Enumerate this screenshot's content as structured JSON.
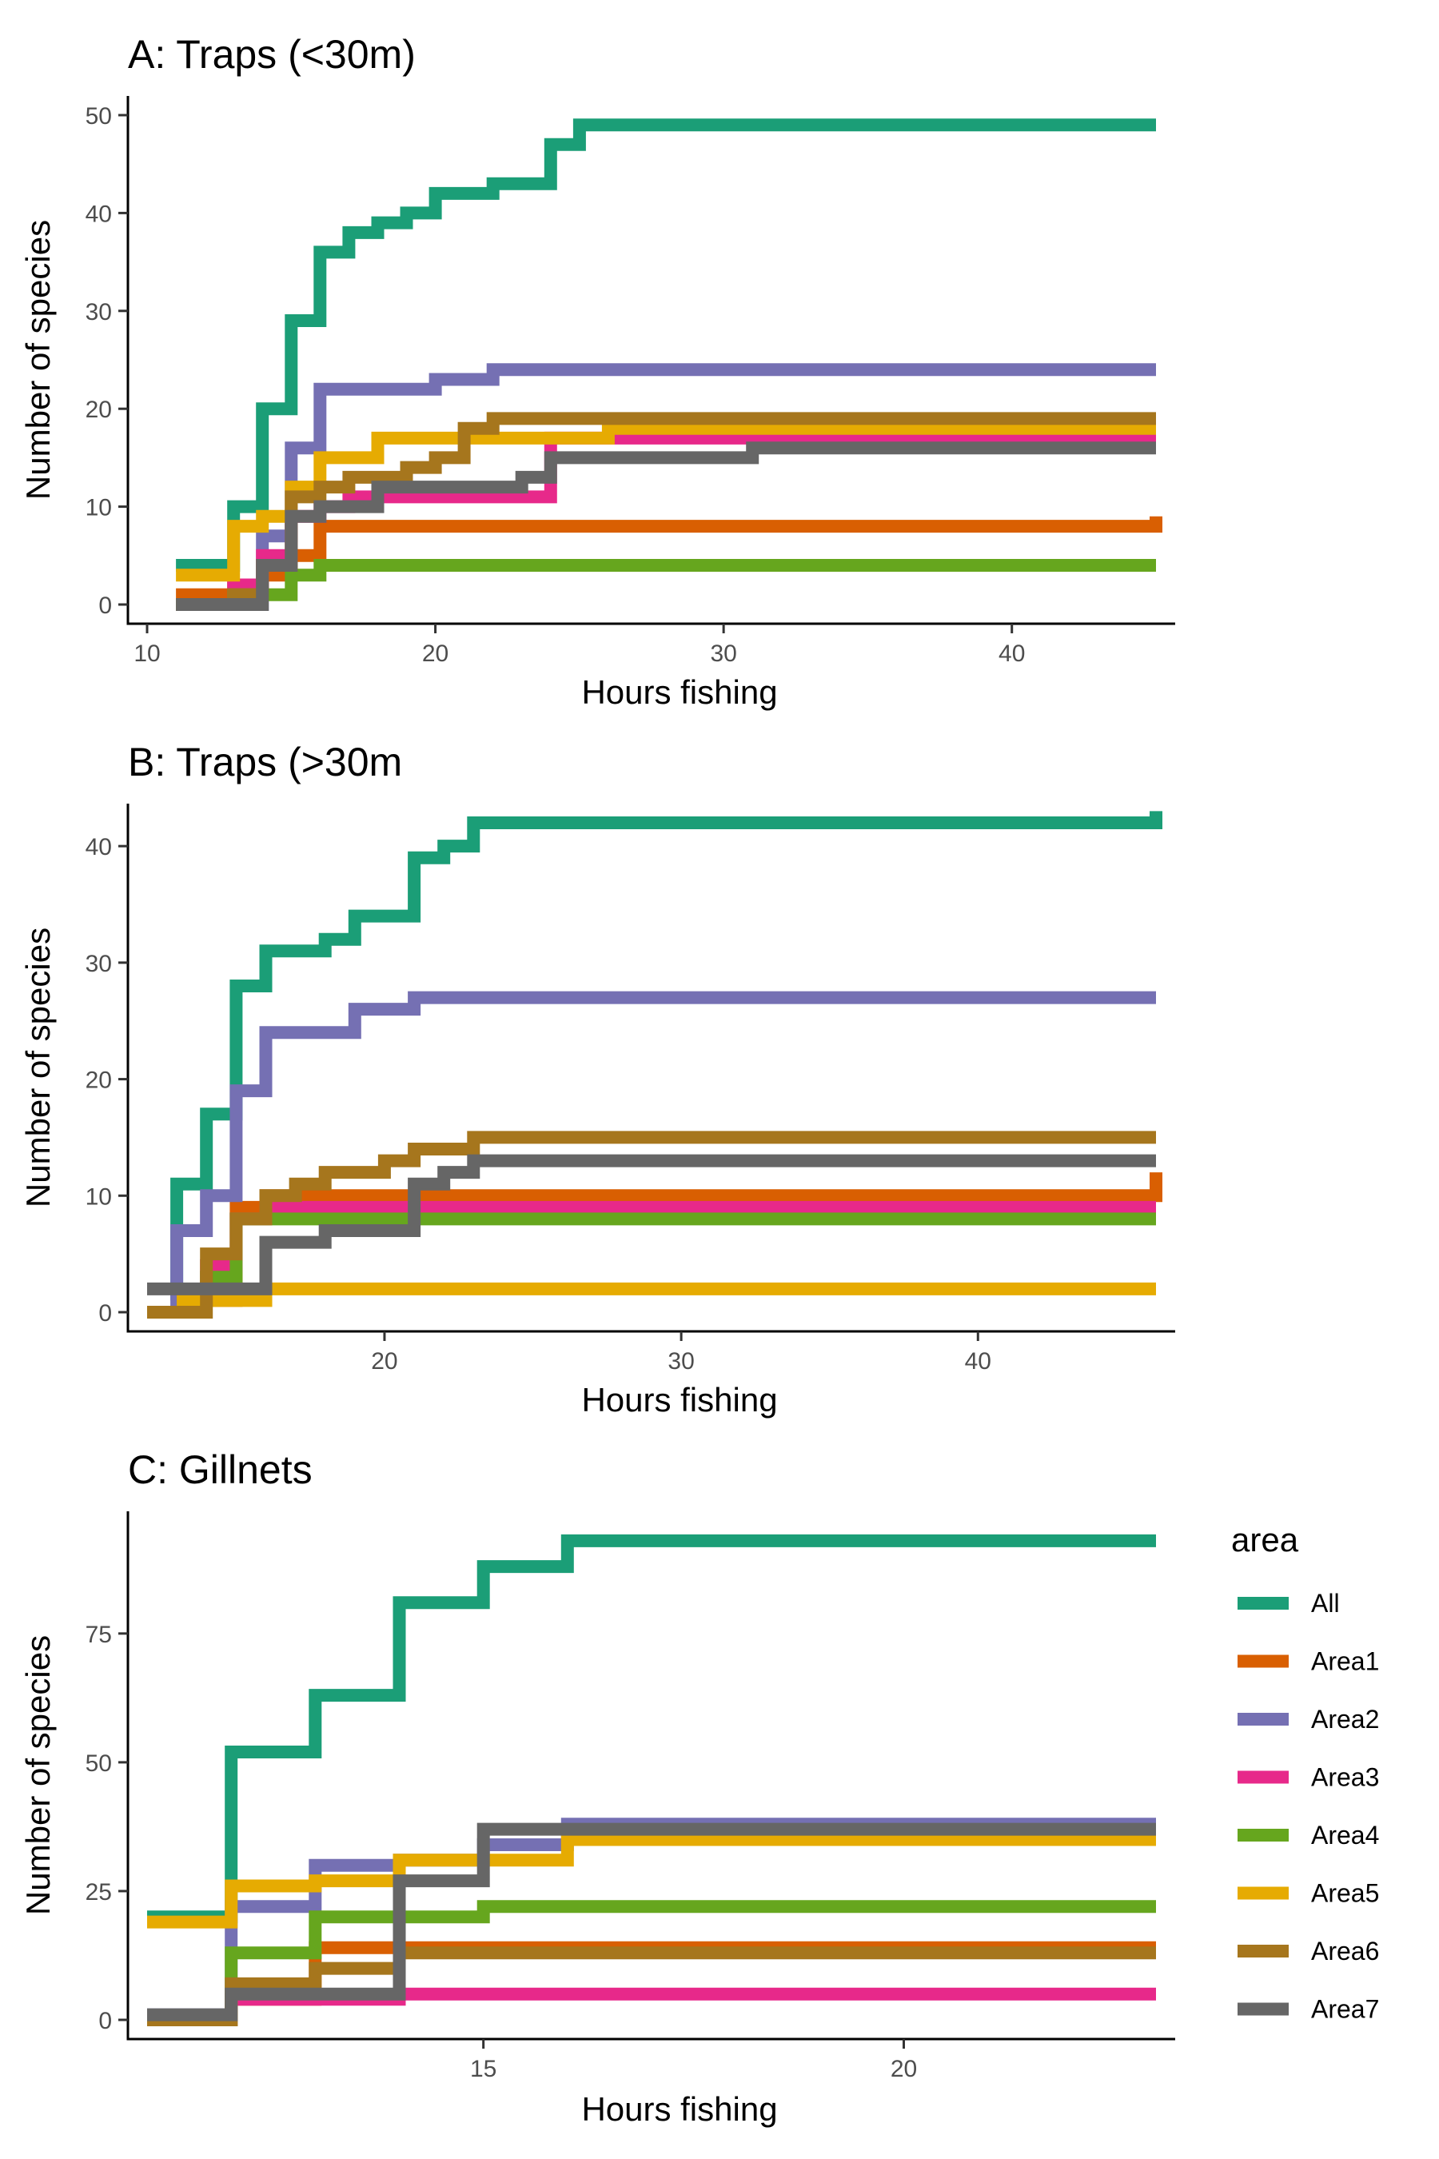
{
  "legend": {
    "title": "area",
    "entries": [
      {
        "name": "All",
        "color": "#1B9E77"
      },
      {
        "name": "Area1",
        "color": "#D95F02"
      },
      {
        "name": "Area2",
        "color": "#7570B3"
      },
      {
        "name": "Area3",
        "color": "#E7298A"
      },
      {
        "name": "Area4",
        "color": "#66A61E"
      },
      {
        "name": "Area5",
        "color": "#E6AB02"
      },
      {
        "name": "Area6",
        "color": "#A6761D"
      },
      {
        "name": "Area7",
        "color": "#666666"
      }
    ]
  },
  "chart_data": [
    {
      "type": "line",
      "step": true,
      "title": "A: Traps (<30m)",
      "xlabel": "Hours fishing",
      "ylabel": "Number of species",
      "xlim": [
        10,
        45
      ],
      "ylim": [
        0,
        50
      ],
      "xticks": [
        10,
        20,
        30,
        40
      ],
      "yticks": [
        0,
        10,
        20,
        30,
        40,
        50
      ],
      "grid": false,
      "series": [
        {
          "name": "All",
          "points": [
            [
              11,
              4
            ],
            [
              13,
              10
            ],
            [
              14,
              20
            ],
            [
              15,
              29
            ],
            [
              16,
              36
            ],
            [
              17,
              38
            ],
            [
              18,
              39
            ],
            [
              19,
              40
            ],
            [
              20,
              42
            ],
            [
              22,
              43
            ],
            [
              24,
              47
            ],
            [
              25,
              49
            ],
            [
              45,
              49
            ]
          ]
        },
        {
          "name": "Area1",
          "points": [
            [
              11,
              1
            ],
            [
              13,
              2
            ],
            [
              14,
              3
            ],
            [
              15,
              5
            ],
            [
              16,
              8
            ],
            [
              45,
              8
            ],
            [
              45,
              9
            ]
          ]
        },
        {
          "name": "Area2",
          "points": [
            [
              11,
              0
            ],
            [
              14,
              7
            ],
            [
              15,
              16
            ],
            [
              16,
              22
            ],
            [
              20,
              23
            ],
            [
              22,
              24
            ],
            [
              45,
              24
            ]
          ]
        },
        {
          "name": "Area3",
          "points": [
            [
              11,
              0
            ],
            [
              13,
              2
            ],
            [
              14,
              5
            ],
            [
              15,
              9
            ],
            [
              16,
              10
            ],
            [
              17,
              11
            ],
            [
              24,
              17
            ],
            [
              45,
              17
            ]
          ]
        },
        {
          "name": "Area4",
          "points": [
            [
              11,
              0
            ],
            [
              13,
              1
            ],
            [
              14,
              1
            ],
            [
              15,
              3
            ],
            [
              16,
              4
            ],
            [
              45,
              4
            ]
          ]
        },
        {
          "name": "Area5",
          "points": [
            [
              11,
              3
            ],
            [
              13,
              8
            ],
            [
              14,
              9
            ],
            [
              15,
              12
            ],
            [
              16,
              15
            ],
            [
              18,
              17
            ],
            [
              26,
              18
            ],
            [
              45,
              18
            ]
          ]
        },
        {
          "name": "Area6",
          "points": [
            [
              11,
              0
            ],
            [
              13,
              1
            ],
            [
              14,
              4
            ],
            [
              15,
              11
            ],
            [
              16,
              12
            ],
            [
              17,
              13
            ],
            [
              19,
              14
            ],
            [
              20,
              15
            ],
            [
              21,
              18
            ],
            [
              22,
              19
            ],
            [
              45,
              19
            ]
          ]
        },
        {
          "name": "Area7",
          "points": [
            [
              11,
              0
            ],
            [
              14,
              4
            ],
            [
              15,
              9
            ],
            [
              16,
              10
            ],
            [
              18,
              12
            ],
            [
              23,
              13
            ],
            [
              24,
              15
            ],
            [
              31,
              16
            ],
            [
              45,
              16
            ]
          ]
        }
      ]
    },
    {
      "type": "line",
      "step": true,
      "title": "B: Traps (>30m",
      "xlabel": "Hours fishing",
      "ylabel": "Number of species",
      "xlim": [
        12,
        46
      ],
      "ylim": [
        0,
        42
      ],
      "xticks": [
        20,
        30,
        40
      ],
      "yticks": [
        0,
        10,
        20,
        30,
        40
      ],
      "grid": false,
      "series": [
        {
          "name": "All",
          "points": [
            [
              13,
              1
            ],
            [
              13,
              11
            ],
            [
              14,
              17
            ],
            [
              15,
              28
            ],
            [
              16,
              31
            ],
            [
              18,
              32
            ],
            [
              19,
              34
            ],
            [
              21,
              39
            ],
            [
              22,
              40
            ],
            [
              23,
              42
            ],
            [
              46,
              42
            ],
            [
              46,
              43
            ]
          ]
        },
        {
          "name": "Area1",
          "points": [
            [
              13,
              1
            ],
            [
              14,
              1
            ],
            [
              15,
              9
            ],
            [
              16,
              10
            ],
            [
              46,
              10
            ],
            [
              46,
              12
            ]
          ]
        },
        {
          "name": "Area2",
          "points": [
            [
              13,
              0
            ],
            [
              13,
              7
            ],
            [
              14,
              10
            ],
            [
              15,
              19
            ],
            [
              16,
              24
            ],
            [
              19,
              26
            ],
            [
              21,
              27
            ],
            [
              46,
              27
            ]
          ]
        },
        {
          "name": "Area3",
          "points": [
            [
              13,
              1
            ],
            [
              14,
              4
            ],
            [
              15,
              8
            ],
            [
              16,
              9
            ],
            [
              46,
              9
            ]
          ]
        },
        {
          "name": "Area4",
          "points": [
            [
              13,
              1
            ],
            [
              14,
              3
            ],
            [
              15,
              8
            ],
            [
              46,
              8
            ]
          ]
        },
        {
          "name": "Area5",
          "points": [
            [
              13,
              1
            ],
            [
              14,
              1
            ],
            [
              15,
              1
            ],
            [
              16,
              2
            ],
            [
              46,
              2
            ]
          ]
        },
        {
          "name": "Area6",
          "points": [
            [
              12,
              0
            ],
            [
              14,
              5
            ],
            [
              15,
              8
            ],
            [
              16,
              10
            ],
            [
              17,
              11
            ],
            [
              18,
              12
            ],
            [
              20,
              13
            ],
            [
              21,
              14
            ],
            [
              23,
              15
            ],
            [
              46,
              15
            ]
          ]
        },
        {
          "name": "Area7",
          "points": [
            [
              12,
              2
            ],
            [
              16,
              6
            ],
            [
              18,
              7
            ],
            [
              21,
              11
            ],
            [
              22,
              12
            ],
            [
              23,
              13
            ],
            [
              46,
              13
            ]
          ]
        }
      ]
    },
    {
      "type": "line",
      "step": true,
      "title": "C: Gillnets",
      "xlabel": "Hours fishing",
      "ylabel": "Number of species",
      "xlim": [
        11,
        23
      ],
      "ylim": [
        0,
        95
      ],
      "xticks": [
        15,
        20
      ],
      "yticks": [
        0,
        25,
        50,
        75
      ],
      "grid": false,
      "series": [
        {
          "name": "All",
          "points": [
            [
              11,
              20
            ],
            [
              12,
              52
            ],
            [
              13,
              63
            ],
            [
              14,
              81
            ],
            [
              15,
              88
            ],
            [
              16,
              93
            ],
            [
              23,
              93
            ]
          ]
        },
        {
          "name": "Area1",
          "points": [
            [
              11,
              0
            ],
            [
              12,
              4
            ],
            [
              13,
              14
            ],
            [
              23,
              14
            ]
          ]
        },
        {
          "name": "Area2",
          "points": [
            [
              11,
              1
            ],
            [
              12,
              22
            ],
            [
              13,
              30
            ],
            [
              14,
              31
            ],
            [
              15,
              34
            ],
            [
              16,
              38
            ],
            [
              23,
              38
            ]
          ]
        },
        {
          "name": "Area3",
          "points": [
            [
              11,
              0
            ],
            [
              12,
              4
            ],
            [
              14,
              5
            ],
            [
              23,
              5
            ]
          ]
        },
        {
          "name": "Area4",
          "points": [
            [
              11,
              0
            ],
            [
              12,
              13
            ],
            [
              13,
              20
            ],
            [
              15,
              22
            ],
            [
              23,
              22
            ]
          ]
        },
        {
          "name": "Area5",
          "points": [
            [
              11,
              19
            ],
            [
              12,
              26
            ],
            [
              13,
              27
            ],
            [
              14,
              31
            ],
            [
              16,
              35
            ],
            [
              23,
              35
            ]
          ]
        },
        {
          "name": "Area6",
          "points": [
            [
              11,
              0
            ],
            [
              12,
              7
            ],
            [
              13,
              10
            ],
            [
              14,
              13
            ],
            [
              23,
              13
            ]
          ]
        },
        {
          "name": "Area7",
          "points": [
            [
              11,
              1
            ],
            [
              12,
              5
            ],
            [
              14,
              27
            ],
            [
              15,
              37
            ],
            [
              23,
              37
            ]
          ]
        }
      ]
    }
  ]
}
